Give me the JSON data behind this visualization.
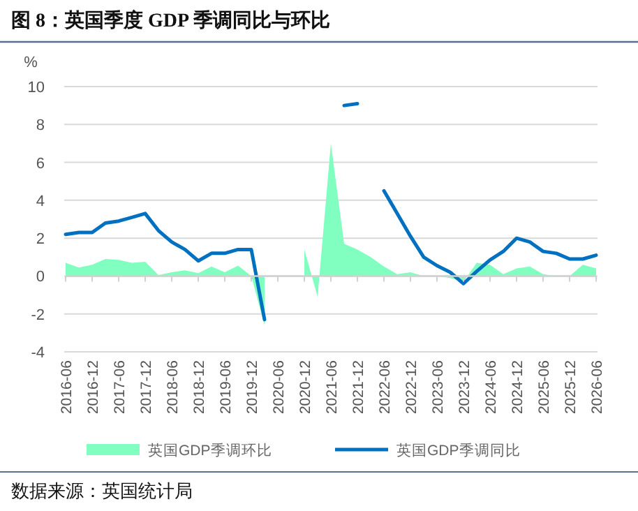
{
  "chart_data": {
    "type": "area",
    "title": "图 8：英国季度 GDP 季调同比与环比",
    "ylabel": "%",
    "categories": [
      "2016-06",
      null,
      "2016-12",
      null,
      "2017-06",
      null,
      "2017-12",
      null,
      "2018-06",
      null,
      "2018-12",
      null,
      "2019-06",
      null,
      "2019-12",
      null,
      "2020-06",
      null,
      "2020-12",
      null,
      "2021-06",
      null,
      "2021-12",
      null,
      "2022-06",
      null,
      "2022-12",
      null,
      "2023-06",
      null,
      "2023-12",
      null,
      "2024-06",
      null,
      "2024-12",
      null,
      "2025-06",
      null,
      "2025-12",
      null,
      "2026-06"
    ],
    "series": [
      {
        "name": "英国GDP季调环比",
        "color": "#80ffc0",
        "values": [
          0.7,
          0.45,
          0.6,
          0.9,
          0.85,
          0.7,
          0.75,
          0.05,
          0.2,
          0.3,
          0.15,
          0.5,
          0.2,
          0.55,
          0.0,
          -2.6,
          null,
          null,
          1.4,
          -1.1,
          7.0,
          1.7,
          1.4,
          1.0,
          0.5,
          0.1,
          0.2,
          0.0,
          0.0,
          -0.1,
          -0.3,
          0.7,
          0.6,
          0.1,
          0.4,
          0.5,
          0.1,
          0.0,
          0.0,
          0.6,
          0.4
        ]
      },
      {
        "name": "英国GDP季调同比",
        "type": "line",
        "color": "#0070c0",
        "values": [
          2.2,
          2.3,
          2.3,
          2.8,
          2.9,
          3.1,
          3.3,
          2.4,
          1.8,
          1.4,
          0.8,
          1.2,
          1.2,
          1.4,
          1.4,
          -2.3,
          null,
          null,
          null,
          null,
          null,
          9.0,
          9.1,
          null,
          4.5,
          3.3,
          2.1,
          1.0,
          0.55,
          0.2,
          -0.4,
          0.25,
          0.85,
          1.3,
          2.0,
          1.8,
          1.3,
          1.2,
          0.9,
          0.9,
          1.1
        ]
      }
    ],
    "ylim": [
      -4,
      10
    ],
    "yticks": [
      -4,
      -2,
      0,
      2,
      4,
      6,
      8,
      10
    ],
    "grid": "y",
    "legend": "bottom",
    "marker": "none",
    "line_style": "solid",
    "annotations": [
      "数据来源：英国统计局"
    ]
  }
}
